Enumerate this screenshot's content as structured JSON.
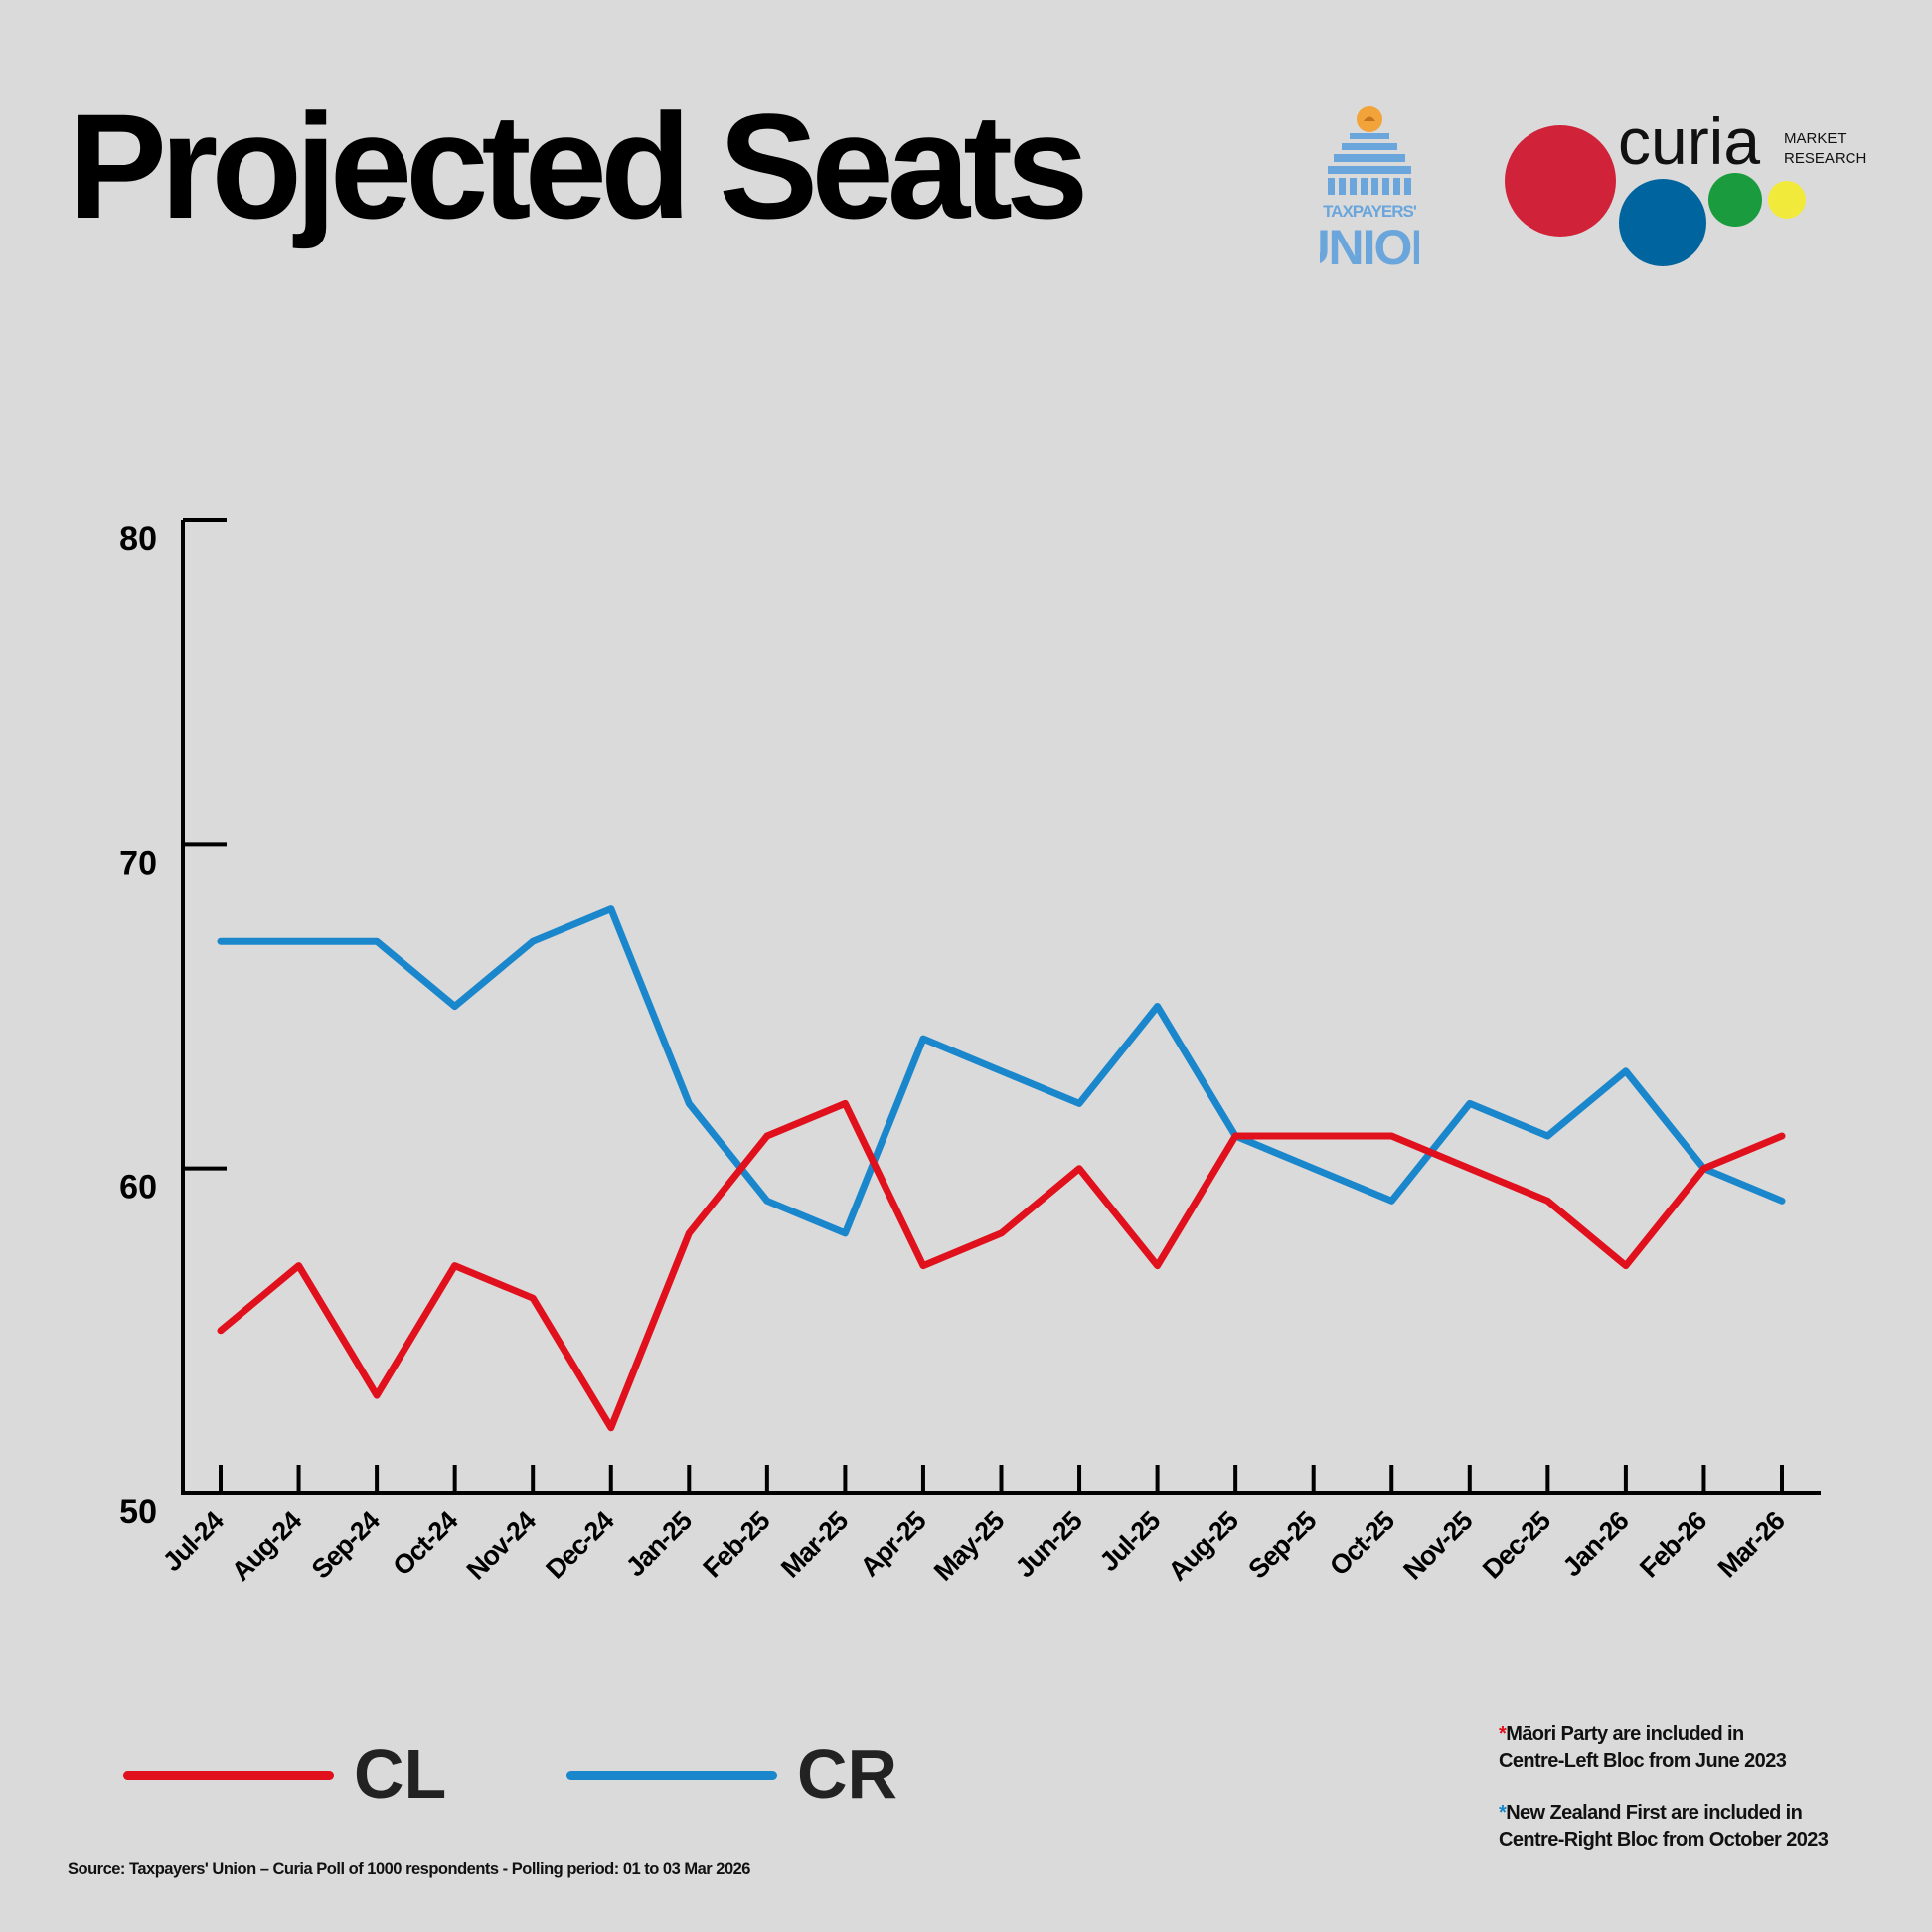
{
  "header": {
    "title": "Projected Seats"
  },
  "logos": {
    "taxpayers_union": {
      "line1": "TAXPAYERS'",
      "line2": "UNION",
      "color": "#6aa6dc"
    },
    "curia": {
      "name": "curia",
      "tag1": "MARKET",
      "tag2": "RESEARCH",
      "colors": [
        "#d0233a",
        "#00659f",
        "#1a9b3e",
        "#f2ea3a"
      ]
    }
  },
  "chart_data": {
    "type": "line",
    "title": "Projected Seats",
    "xlabel": "",
    "ylabel": "",
    "ylim": [
      50,
      80
    ],
    "yticks": [
      50,
      60,
      70,
      80
    ],
    "categories": [
      "Jul-24",
      "Aug-24",
      "Sep-24",
      "Oct-24",
      "Nov-24",
      "Dec-24",
      "Jan-25",
      "Feb-25",
      "Mar-25",
      "Apr-25",
      "May-25",
      "Jun-25",
      "Jul-25",
      "Aug-25",
      "Sep-25",
      "Oct-25",
      "Nov-25",
      "Dec-25",
      "Jan-26",
      "Feb-26",
      "Mar-26"
    ],
    "series": [
      {
        "name": "CL",
        "color": "#e0101c",
        "values": [
          55,
          57,
          53,
          57,
          56,
          52,
          58,
          61,
          62,
          57,
          58,
          60,
          57,
          61,
          61,
          61,
          60,
          59,
          57,
          60,
          61
        ]
      },
      {
        "name": "CR",
        "color": "#1a86cc",
        "values": [
          67,
          67,
          67,
          65,
          67,
          68,
          62,
          59,
          58,
          64,
          63,
          62,
          65,
          61,
          60,
          59,
          62,
          61,
          63,
          60,
          59
        ]
      }
    ],
    "grid": false,
    "legend": "bottom-left"
  },
  "legend": {
    "cl_label": "CL",
    "cr_label": "CR",
    "cl_color": "#e0101c",
    "cr_color": "#1a86cc"
  },
  "notes": {
    "note1_star": "*",
    "note1_line1": "Māori Party are included in",
    "note1_line2": "Centre-Left Bloc from June 2023",
    "note2_star": "*",
    "note2_line1": "New Zealand First are included in",
    "note2_line2": "Centre-Right Bloc from October 2023"
  },
  "footer": {
    "source": "Source: Taxpayers' Union – Curia Poll of 1000 respondents - Polling period: 01 to 03 Mar 2026"
  }
}
